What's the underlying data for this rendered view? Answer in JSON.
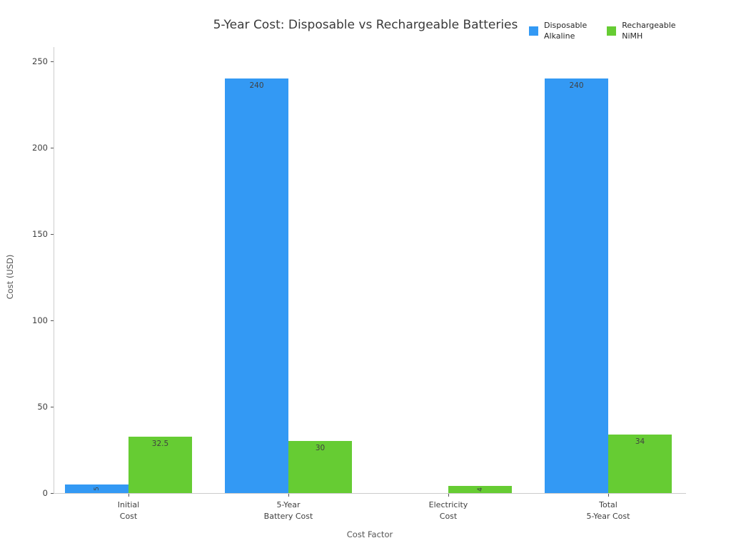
{
  "title": "5-Year Cost: Disposable vs Rechargeable Batteries",
  "chart_data": {
    "type": "bar",
    "title": "5-Year Cost: Disposable vs Rechargeable Batteries",
    "xlabel": "Cost Factor",
    "ylabel": "Cost (USD)",
    "categories": [
      "Initial\nCost",
      "5-Year\nBattery Cost",
      "Electricity\nCost",
      "Total\n5-Year Cost"
    ],
    "series": [
      {
        "name": "Disposable Alkaline",
        "legend_lines": [
          "Disposable",
          "Alkaline"
        ],
        "color": "#3399f4",
        "values": [
          5,
          240,
          0,
          240
        ],
        "labels": [
          "5",
          "240",
          "",
          "240"
        ]
      },
      {
        "name": "Rechargeable NiMH",
        "legend_lines": [
          "Rechargeable",
          "NiMH"
        ],
        "color": "#66cc33",
        "values": [
          32.5,
          30,
          4,
          34
        ],
        "labels": [
          "32.5",
          "30",
          "4",
          "34"
        ]
      }
    ],
    "yticks": [
      0,
      50,
      100,
      150,
      200,
      250
    ],
    "ylim": [
      0,
      258
    ],
    "grid": false,
    "legend_position": "top-right",
    "background": "#ffffff"
  }
}
